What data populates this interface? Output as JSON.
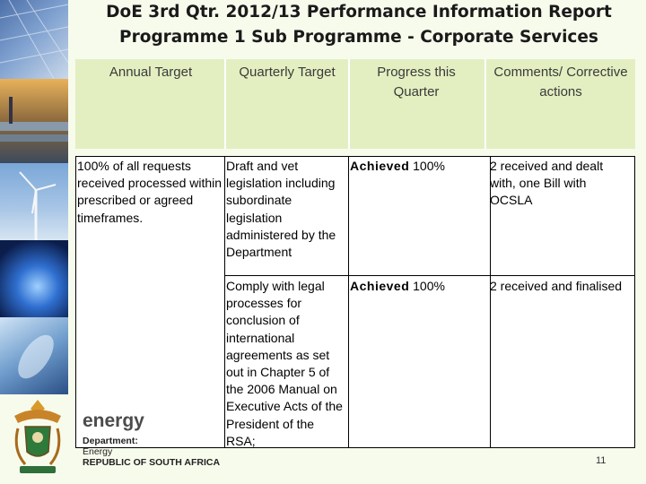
{
  "header": {
    "title_line1": "DoE 3rd Qtr. 2012/13 Performance Information Report",
    "title_line2": "Programme 1 Sub Programme - Corporate Services"
  },
  "table": {
    "columns": [
      "Annual Target",
      "Quarterly Target",
      "Progress this Quarter",
      "Comments/ Corrective actions"
    ],
    "annual_target": "100% of all requests received processed within prescribed or agreed timeframes.",
    "rows": [
      {
        "quarterly_target": "Draft and vet legislation including subordinate legislation administered by the Department",
        "progress_status": "Achieved",
        "progress_value": "100%",
        "comments": "2 received and dealt with, one Bill with OCSLA"
      },
      {
        "quarterly_target": "Comply with legal processes for conclusion of international agreements as set out in Chapter 5 of the 2006 Manual on Executive Acts of the President of the RSA;",
        "progress_status": "Achieved",
        "progress_value": "100%",
        "comments": "2 received and finalised"
      }
    ]
  },
  "footer": {
    "brand": "energy",
    "dept_line1": "Department:",
    "dept_line2": "Energy",
    "dept_line3": "REPUBLIC OF SOUTH AFRICA",
    "page_number": "11"
  },
  "colors": {
    "background": "#f7fbec",
    "header_band": "#e3efc1"
  }
}
